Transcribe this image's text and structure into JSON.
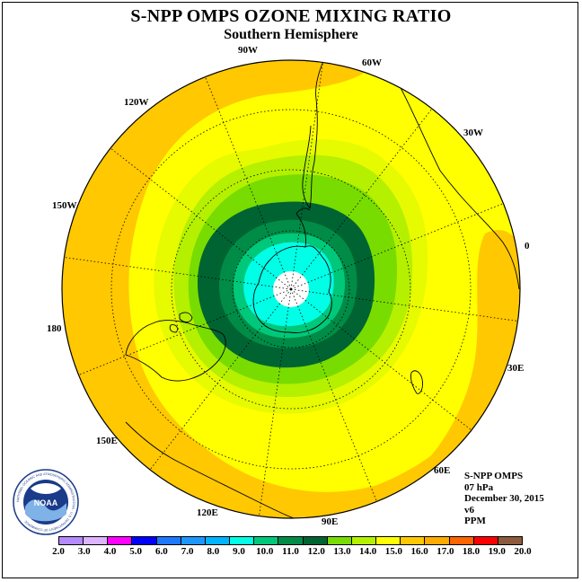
{
  "header": {
    "title": "S-NPP OMPS OZONE MIXING RATIO",
    "subtitle": "Southern Hemisphere"
  },
  "map": {
    "projection": "polar stereographic, south pole centered",
    "longitude_labels": [
      "90W",
      "60W",
      "30W",
      "0",
      "30E",
      "60E",
      "90E",
      "120E",
      "150E",
      "180",
      "150W",
      "120W"
    ],
    "contour_bands_ppm_from_pole_outward": [
      "<11 (white)",
      "9.0-10.0",
      "10.0-11.0",
      "11.0-12.0",
      "12.0-13.0",
      "13.0-14.0",
      "14.0-15.0",
      "15.0-16.0",
      "16.0-17.0"
    ]
  },
  "info": {
    "instrument": "S-NPP OMPS",
    "level": "07 hPa",
    "date": "December 30, 2015",
    "version": "v6",
    "units": "PPM"
  },
  "colorbar": {
    "ticks": [
      "2.0",
      "3.0",
      "4.0",
      "5.0",
      "6.0",
      "7.0",
      "8.0",
      "9.0",
      "10.0",
      "11.0",
      "12.0",
      "13.0",
      "14.0",
      "15.0",
      "16.0",
      "17.0",
      "18.0",
      "19.0",
      "20.0"
    ],
    "colors": [
      "#b48aff",
      "#dcb4ff",
      "#ff00ff",
      "#0000ff",
      "#1e78ff",
      "#1e96ff",
      "#00b4ff",
      "#00ffe6",
      "#00c87a",
      "#008c46",
      "#006432",
      "#78dc00",
      "#b4f000",
      "#ffff00",
      "#ffc800",
      "#ffaa00",
      "#ff6400",
      "#ff0000",
      "#8c5a3c"
    ]
  },
  "logo": {
    "text": "NOAA",
    "ring_text": "NATIONAL OCEANIC AND ATMOSPHERIC ADMINISTRATION · U.S. DEPARTMENT OF COMMERCE"
  }
}
